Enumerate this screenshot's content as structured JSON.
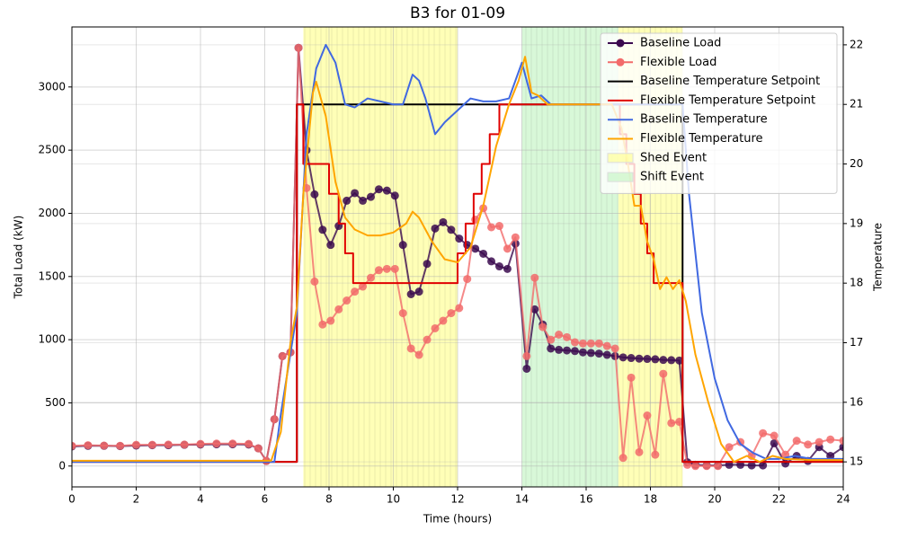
{
  "chart_data": {
    "type": "line",
    "title": "B3 for 01-09",
    "x_label": "Time (hours)",
    "y_label": "Total Load (kW)",
    "y2_label": "Temperature",
    "xlim": [
      0,
      24
    ],
    "xticks": [
      0,
      2,
      4,
      6,
      8,
      10,
      12,
      14,
      16,
      18,
      20,
      22,
      24
    ],
    "ylim": [
      -165,
      3475
    ],
    "yticks": [
      0,
      500,
      1000,
      1500,
      2000,
      2500,
      3000
    ],
    "y2lim": [
      14.58,
      22.3
    ],
    "y2ticks": [
      15,
      16,
      17,
      18,
      19,
      20,
      21,
      22
    ],
    "grid": true,
    "legend": "upper right",
    "shading": [
      {
        "name": "Shed Event",
        "color": "#ffff99",
        "spans": [
          [
            7.2,
            12
          ],
          [
            17,
            19
          ]
        ]
      },
      {
        "name": "Shift Event",
        "color": "#c8f5c8",
        "spans": [
          [
            14,
            17
          ]
        ]
      }
    ],
    "series": [
      {
        "name": "Baseline Load",
        "color": "#3b0a4f",
        "axis": "y",
        "marker": true,
        "x": [
          0,
          0.5,
          1,
          1.5,
          2,
          2.5,
          3,
          3.5,
          4,
          4.5,
          5,
          5.5,
          5.8,
          6.05,
          6.3,
          6.55,
          6.8,
          7.05,
          7.3,
          7.55,
          7.8,
          8.05,
          8.3,
          8.55,
          8.8,
          9.05,
          9.3,
          9.55,
          9.8,
          10.05,
          10.3,
          10.55,
          10.8,
          11.05,
          11.3,
          11.55,
          11.8,
          12.05,
          12.3,
          12.55,
          12.8,
          13.05,
          13.3,
          13.55,
          13.8,
          14.15,
          14.4,
          14.65,
          14.9,
          15.15,
          15.4,
          15.65,
          15.9,
          16.15,
          16.4,
          16.65,
          16.9,
          17.15,
          17.4,
          17.65,
          17.9,
          18.15,
          18.4,
          18.65,
          18.9,
          19.15,
          19.4,
          19.75,
          20.1,
          20.45,
          20.8,
          21.15,
          21.5,
          21.85,
          22.2,
          22.55,
          22.9,
          23.25,
          23.6,
          24
        ],
        "values": [
          155,
          160,
          160,
          158,
          162,
          165,
          165,
          168,
          170,
          172,
          172,
          170,
          140,
          40,
          370,
          870,
          900,
          3310,
          2500,
          2150,
          1870,
          1750,
          1900,
          2100,
          2160,
          2100,
          2130,
          2190,
          2180,
          2140,
          1750,
          1360,
          1380,
          1600,
          1880,
          1930,
          1870,
          1800,
          1750,
          1720,
          1680,
          1620,
          1580,
          1560,
          1760,
          770,
          1240,
          1120,
          930,
          920,
          915,
          910,
          900,
          895,
          890,
          880,
          870,
          860,
          855,
          850,
          848,
          845,
          840,
          838,
          835,
          30,
          10,
          5,
          5,
          10,
          10,
          5,
          5,
          180,
          20,
          80,
          40,
          150,
          80,
          150
        ]
      },
      {
        "name": "Flexible Load",
        "color": "#f26b6b",
        "axis": "y",
        "marker": true,
        "x": [
          0,
          0.5,
          1,
          1.5,
          2,
          2.5,
          3,
          3.5,
          4,
          4.5,
          5,
          5.5,
          5.8,
          6.05,
          6.3,
          6.55,
          6.8,
          7.05,
          7.3,
          7.55,
          7.8,
          8.05,
          8.3,
          8.55,
          8.8,
          9.05,
          9.3,
          9.55,
          9.8,
          10.05,
          10.3,
          10.55,
          10.8,
          11.05,
          11.3,
          11.55,
          11.8,
          12.05,
          12.3,
          12.55,
          12.8,
          13.05,
          13.3,
          13.55,
          13.8,
          14.15,
          14.4,
          14.65,
          14.9,
          15.15,
          15.4,
          15.65,
          15.9,
          16.15,
          16.4,
          16.65,
          16.9,
          17.15,
          17.4,
          17.65,
          17.9,
          18.15,
          18.4,
          18.65,
          18.9,
          19.15,
          19.4,
          19.75,
          20.1,
          20.45,
          20.8,
          21.15,
          21.5,
          21.85,
          22.2,
          22.55,
          22.9,
          23.25,
          23.6,
          24
        ],
        "values": [
          160,
          165,
          162,
          160,
          168,
          168,
          170,
          170,
          175,
          178,
          178,
          175,
          140,
          40,
          370,
          870,
          900,
          3310,
          2200,
          1460,
          1120,
          1150,
          1240,
          1310,
          1380,
          1420,
          1490,
          1550,
          1560,
          1560,
          1210,
          930,
          880,
          1000,
          1090,
          1150,
          1210,
          1250,
          1480,
          1950,
          2040,
          1890,
          1900,
          1720,
          1810,
          870,
          1490,
          1100,
          1000,
          1040,
          1020,
          980,
          970,
          970,
          970,
          950,
          930,
          65,
          700,
          110,
          400,
          90,
          730,
          340,
          350,
          10,
          0,
          0,
          0,
          150,
          190,
          80,
          260,
          240,
          90,
          200,
          170,
          190,
          210,
          200
        ]
      },
      {
        "name": "Baseline Temperature Setpoint",
        "color": "#000000",
        "axis": "y2",
        "step": "post",
        "x": [
          0,
          7,
          19,
          24
        ],
        "values": [
          15,
          21,
          15,
          15
        ]
      },
      {
        "name": "Flexible Temperature Setpoint",
        "color": "#e00000",
        "axis": "y2",
        "step": "post",
        "x": [
          0,
          7,
          7.2,
          8,
          8.3,
          8.5,
          8.75,
          12,
          12.25,
          12.5,
          12.75,
          13,
          13.3,
          17.05,
          17.25,
          17.5,
          17.7,
          17.9,
          18.1,
          19,
          24
        ],
        "values": [
          15,
          21,
          20,
          19.5,
          19,
          18.5,
          18,
          18.5,
          19,
          19.5,
          20,
          20.5,
          21,
          20.5,
          20,
          19.5,
          19,
          18.5,
          18,
          15,
          15
        ]
      },
      {
        "name": "Baseline Temperature",
        "color": "#4169e1",
        "axis": "y2",
        "x": [
          0,
          6.3,
          6.5,
          7.0,
          7.3,
          7.6,
          7.9,
          8.2,
          8.5,
          8.8,
          9.2,
          9.6,
          10.0,
          10.3,
          10.6,
          10.8,
          11.0,
          11.3,
          11.6,
          12.0,
          12.4,
          12.8,
          13.2,
          13.6,
          14.0,
          14.3,
          14.6,
          14.9,
          15.5,
          16.5,
          17.5,
          18.5,
          19.0,
          19.2,
          19.6,
          20.0,
          20.4,
          20.8,
          21.2,
          21.6,
          22.0,
          22.5,
          23,
          23.5,
          24
        ],
        "values": [
          15,
          15,
          15.8,
          17.5,
          20.5,
          21.6,
          22.0,
          21.7,
          21.0,
          20.95,
          21.1,
          21.05,
          21.0,
          21.0,
          21.5,
          21.4,
          21.1,
          20.5,
          20.7,
          20.9,
          21.1,
          21.05,
          21.05,
          21.1,
          21.7,
          21.1,
          21.15,
          21.0,
          21.0,
          21.0,
          21.0,
          21.0,
          21.0,
          19.5,
          17.5,
          16.4,
          15.7,
          15.3,
          15.15,
          15.05,
          15.05,
          15.1,
          15.05,
          15.05,
          15.05
        ]
      },
      {
        "name": "Flexible Temperature",
        "color": "#ffa500",
        "axis": "y2",
        "x": [
          0,
          6.2,
          6.5,
          6.8,
          7.0,
          7.2,
          7.5,
          7.6,
          7.9,
          8.2,
          8.5,
          8.8,
          9.2,
          9.6,
          10.0,
          10.4,
          10.6,
          10.8,
          11.2,
          11.6,
          12.0,
          12.4,
          12.8,
          13.2,
          13.6,
          13.9,
          14.1,
          14.3,
          14.5,
          14.8,
          15.5,
          16.8,
          17.1,
          17.3,
          17.5,
          17.7,
          17.9,
          18.1,
          18.3,
          18.5,
          18.7,
          18.9,
          19.1,
          19.4,
          19.8,
          20.2,
          20.6,
          21.0,
          21.4,
          21.8,
          22.2,
          23.0,
          24
        ],
        "values": [
          15.02,
          15.02,
          15.5,
          17.0,
          17.6,
          19.5,
          21.2,
          21.38,
          20.8,
          19.7,
          19.1,
          18.9,
          18.8,
          18.8,
          18.85,
          19.0,
          19.2,
          19.1,
          18.7,
          18.4,
          18.35,
          18.6,
          19.3,
          20.3,
          21.0,
          21.4,
          21.8,
          21.2,
          21.15,
          21.0,
          21.0,
          21.0,
          20.6,
          20.0,
          19.3,
          19.3,
          18.7,
          18.4,
          17.9,
          18.1,
          17.9,
          18.05,
          17.7,
          16.8,
          16.0,
          15.3,
          15.0,
          15.1,
          15.0,
          15.1,
          15.05,
          15.03,
          15.03
        ]
      }
    ]
  }
}
